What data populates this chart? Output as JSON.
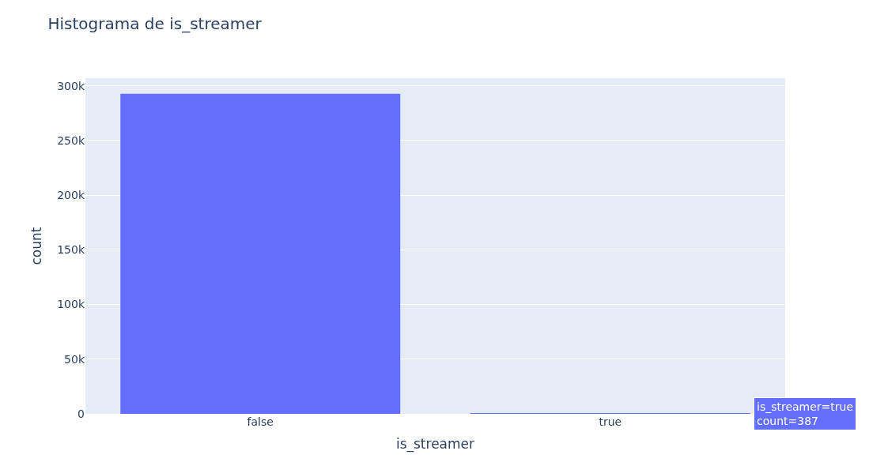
{
  "chart_data": {
    "type": "bar",
    "title": "Histograma de is_streamer",
    "xlabel": "is_streamer",
    "ylabel": "count",
    "categories": [
      "false",
      "true"
    ],
    "values": [
      292800,
      387
    ],
    "color": "#636efa",
    "ylim": [
      0,
      307000
    ],
    "yticks": [
      {
        "value": 0,
        "label": "0"
      },
      {
        "value": 50000,
        "label": "50k"
      },
      {
        "value": 100000,
        "label": "100k"
      },
      {
        "value": 150000,
        "label": "150k"
      },
      {
        "value": 200000,
        "label": "200k"
      },
      {
        "value": 250000,
        "label": "250k"
      },
      {
        "value": 300000,
        "label": "300k"
      }
    ],
    "grid": "y",
    "annotations": [
      "is_streamer=true\ncount=387"
    ]
  }
}
